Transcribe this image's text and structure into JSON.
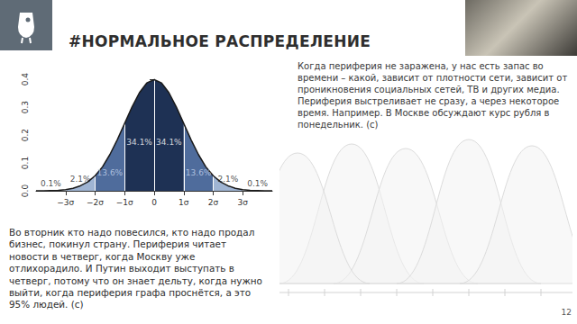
{
  "header": {
    "title": "#НОРМАЛЬНОЕ РАСПРЕДЕЛЕНИЕ"
  },
  "chart_data": {
    "type": "area",
    "x": [
      -4,
      -3.75,
      -3.5,
      -3.25,
      -3,
      -2.75,
      -2.5,
      -2.25,
      -2,
      -1.75,
      -1.5,
      -1.25,
      -1,
      -0.75,
      -0.5,
      -0.25,
      0,
      0.25,
      0.5,
      0.75,
      1,
      1.25,
      1.5,
      1.75,
      2,
      2.25,
      2.5,
      2.75,
      3,
      3.25,
      3.5,
      3.75,
      4
    ],
    "values": [
      0.0,
      0.0,
      0.001,
      0.002,
      0.004,
      0.009,
      0.018,
      0.032,
      0.054,
      0.086,
      0.13,
      0.183,
      0.242,
      0.301,
      0.352,
      0.387,
      0.399,
      0.387,
      0.352,
      0.301,
      0.242,
      0.183,
      0.13,
      0.086,
      0.054,
      0.032,
      0.018,
      0.009,
      0.004,
      0.002,
      0.001,
      0.0,
      0.0
    ],
    "color": "#1a1a1a",
    "bands": [
      {
        "from": -4,
        "to": -3,
        "label": "0.1%",
        "color": "#dde6f2"
      },
      {
        "from": -3,
        "to": -2,
        "label": "2.1%",
        "color": "#9fb4d3"
      },
      {
        "from": -2,
        "to": -1,
        "label": "13.6%",
        "color": "#4f6c9c"
      },
      {
        "from": -1,
        "to": 0,
        "label": "34.1%",
        "color": "#1e3154"
      },
      {
        "from": 0,
        "to": 1,
        "label": "34.1%",
        "color": "#1e3154"
      },
      {
        "from": 1,
        "to": 2,
        "label": "13.6%",
        "color": "#4f6c9c"
      },
      {
        "from": 2,
        "to": 3,
        "label": "2.1%",
        "color": "#9fb4d3"
      },
      {
        "from": 3,
        "to": 4,
        "label": "0.1%",
        "color": "#dde6f2"
      }
    ],
    "xlim": [
      -4,
      4
    ],
    "xticks": [
      {
        "value": -3,
        "label": "−3σ"
      },
      {
        "value": -2,
        "label": "−2σ"
      },
      {
        "value": -1,
        "label": "−1σ"
      },
      0,
      {
        "value": 1,
        "label": "1σ"
      },
      {
        "value": 2,
        "label": "2σ"
      },
      {
        "value": 3,
        "label": "3σ"
      }
    ],
    "ylim": [
      0,
      0.4
    ],
    "yticks": [
      {
        "value": 0,
        "label": "0.0"
      },
      0.1,
      0.2,
      0.3,
      0.4
    ],
    "grid": false
  },
  "text_right": "Когда периферия не заражена, у нас есть запас во времени – какой, зависит от плотности сети, зависит от проникновения социальных сетей, ТВ и других медиа. Периферия выстреливает не сразу, а через некоторое время. Например. В Москве обсуждают курс рубля в понедельник. (с)",
  "text_left": "Во вторник кто надо повесился, кто надо продал бизнес, покинул страну. Периферия читает новости в четверг, когда Москву уже отлихорадило. И Путин выходит выступать в четверг, потому что он знает дельту, когда нужно выйти, когда периферия графа проснётся, а это 95% людей. (с)",
  "page_number": 12
}
